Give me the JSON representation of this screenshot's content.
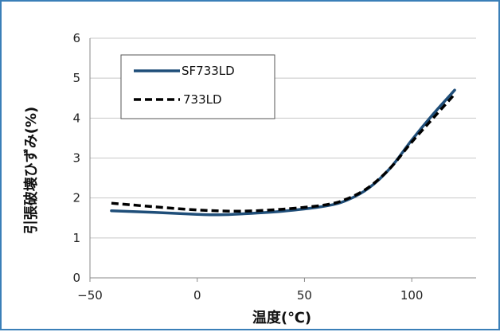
{
  "chart_data": {
    "type": "line",
    "xlabel": "温度(℃)",
    "ylabel": "引張破壊ひずみ(%)",
    "xlim": [
      -50,
      130
    ],
    "ylim": [
      0,
      6
    ],
    "x_ticks": [
      "−50",
      "0",
      "50",
      "100"
    ],
    "y_ticks": [
      "0",
      "1",
      "2",
      "3",
      "4",
      "5",
      "6"
    ],
    "grid": "horizontal",
    "legend_position": "top-left",
    "series": [
      {
        "name": "SF733LD",
        "color": "#1f4e79",
        "style": "solid",
        "points": [
          [
            -40,
            1.68
          ],
          [
            -20,
            1.64
          ],
          [
            0,
            1.59
          ],
          [
            10,
            1.58
          ],
          [
            20,
            1.6
          ],
          [
            40,
            1.67
          ],
          [
            60,
            1.8
          ],
          [
            70,
            1.95
          ],
          [
            80,
            2.25
          ],
          [
            90,
            2.75
          ],
          [
            100,
            3.45
          ],
          [
            110,
            4.1
          ],
          [
            120,
            4.7
          ]
        ]
      },
      {
        "name": "733LD",
        "color": "#000000",
        "style": "dashed",
        "points": [
          [
            -40,
            1.87
          ],
          [
            -20,
            1.78
          ],
          [
            0,
            1.7
          ],
          [
            20,
            1.67
          ],
          [
            40,
            1.72
          ],
          [
            60,
            1.83
          ],
          [
            70,
            1.98
          ],
          [
            80,
            2.27
          ],
          [
            90,
            2.75
          ],
          [
            100,
            3.4
          ],
          [
            110,
            4.0
          ],
          [
            120,
            4.6
          ]
        ]
      }
    ]
  }
}
